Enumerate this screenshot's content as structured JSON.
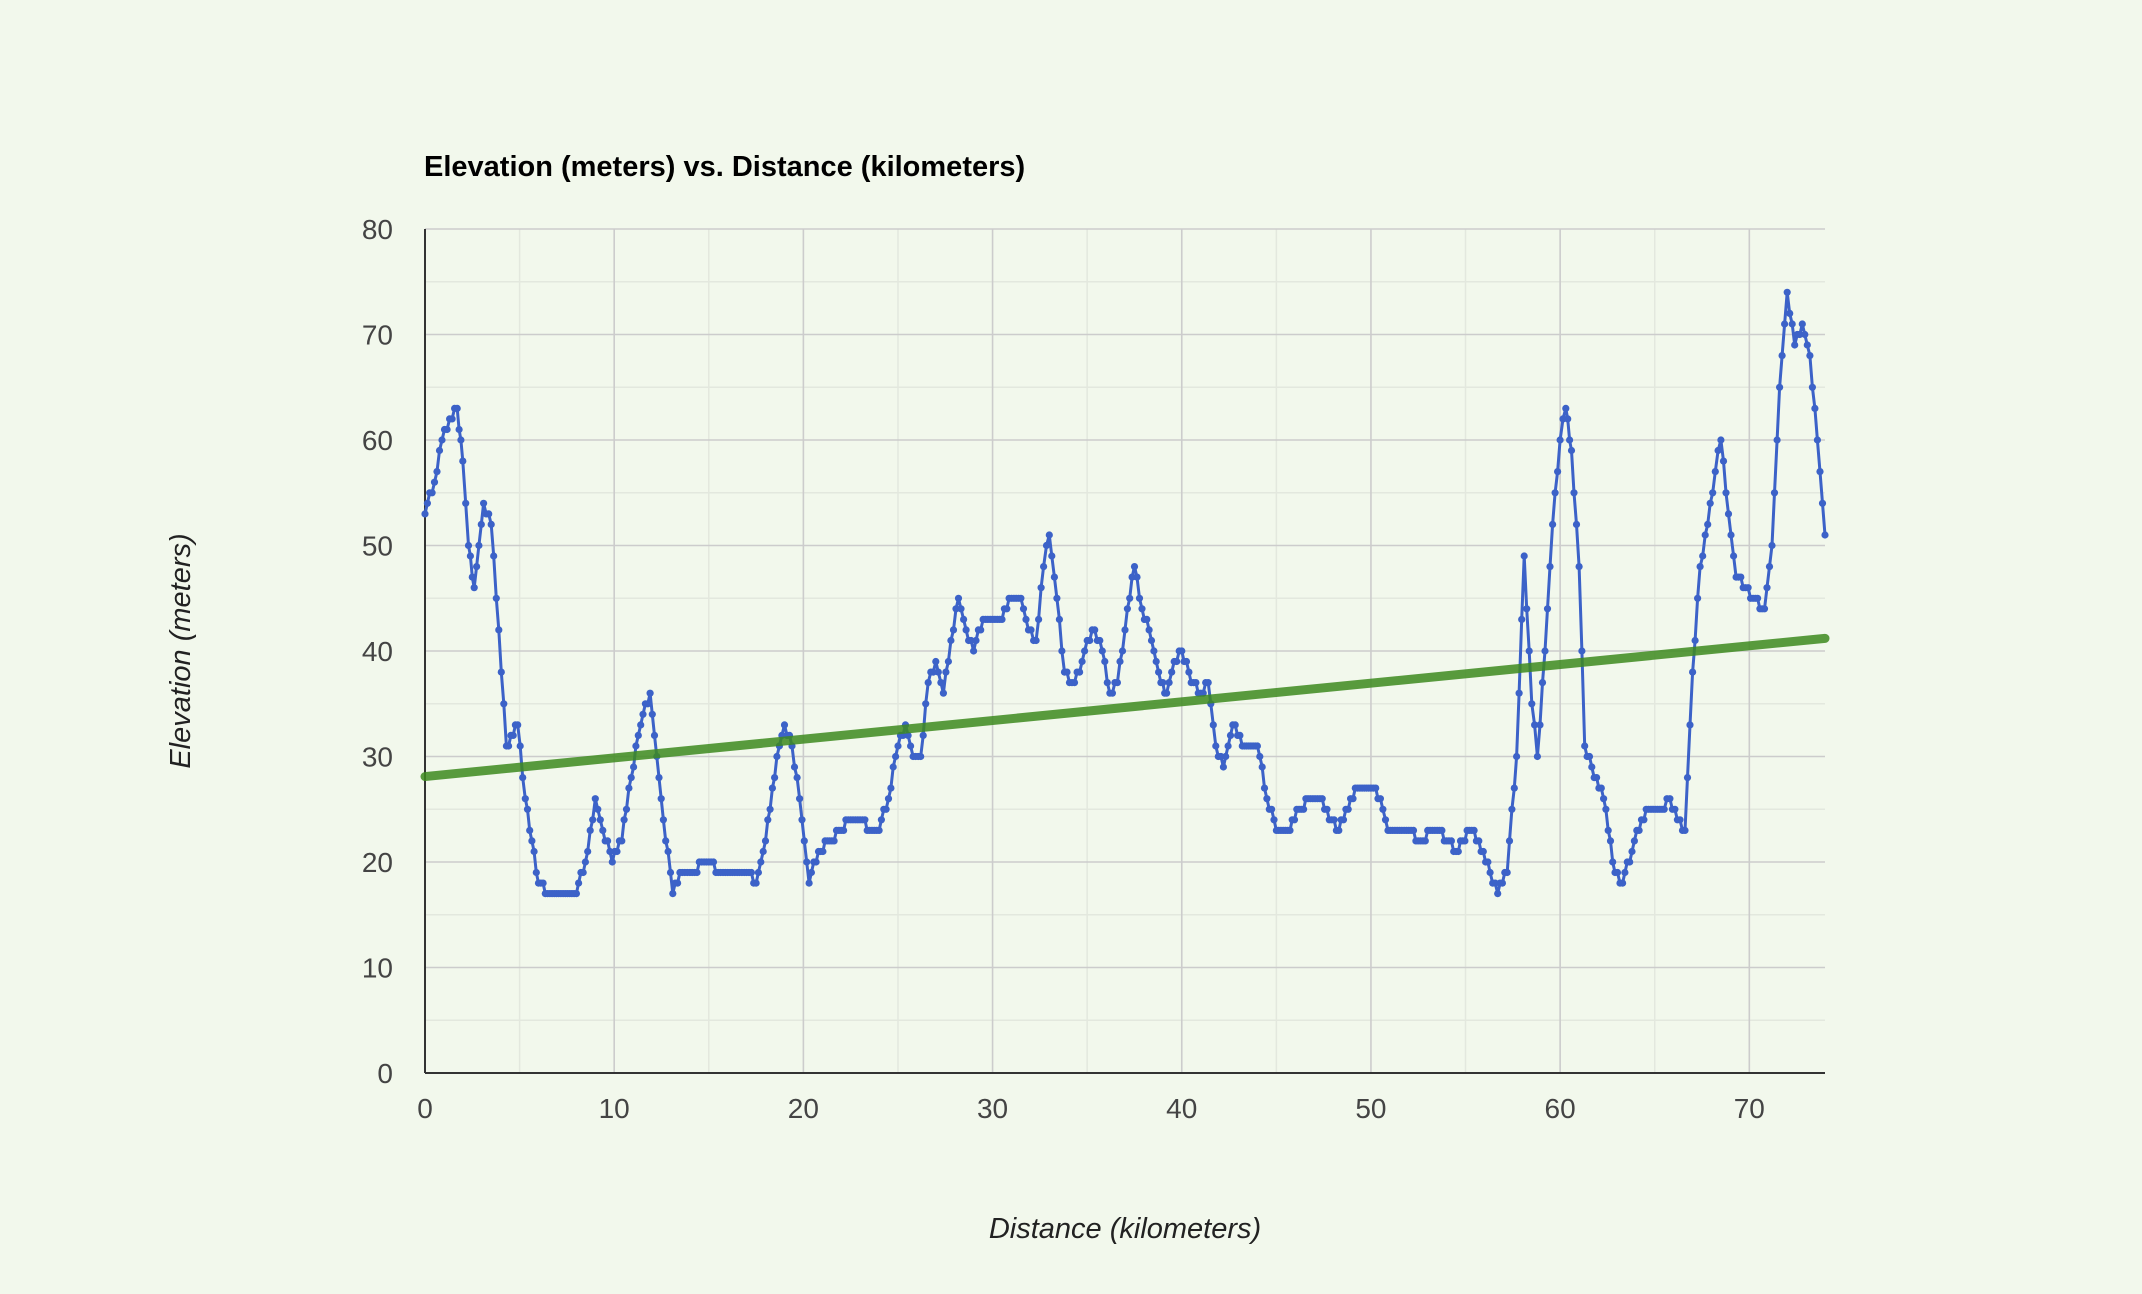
{
  "chart_data": {
    "type": "scatter",
    "title": "Elevation (meters) vs. Distance (kilometers)",
    "xlabel": "Distance (kilometers)",
    "ylabel": "Elevation (meters)",
    "xlim": [
      0,
      74
    ],
    "ylim": [
      0,
      80
    ],
    "x_ticks": [
      0,
      10,
      20,
      30,
      40,
      50,
      60,
      70
    ],
    "y_ticks": [
      0,
      10,
      20,
      30,
      40,
      50,
      60,
      70,
      80
    ],
    "grid": true,
    "legend": "none",
    "colors": {
      "points": "#3c62c8",
      "trendline": "#3d8a1f",
      "background": "#f2f8ec",
      "gridline": "#cccccc"
    },
    "profile_keypoints": [
      [
        0,
        53
      ],
      [
        0.5,
        56
      ],
      [
        0.9,
        60
      ],
      [
        1.3,
        62
      ],
      [
        1.7,
        63
      ],
      [
        2.0,
        58
      ],
      [
        2.3,
        50
      ],
      [
        2.6,
        46
      ],
      [
        3.1,
        54
      ],
      [
        3.5,
        52
      ],
      [
        3.9,
        42
      ],
      [
        4.3,
        31
      ],
      [
        4.9,
        33
      ],
      [
        5.3,
        26
      ],
      [
        6.0,
        18
      ],
      [
        6.6,
        17
      ],
      [
        8.0,
        17
      ],
      [
        8.6,
        21
      ],
      [
        9.0,
        26
      ],
      [
        9.4,
        23
      ],
      [
        9.9,
        20
      ],
      [
        10.4,
        22
      ],
      [
        10.9,
        28
      ],
      [
        11.4,
        33
      ],
      [
        11.9,
        36
      ],
      [
        12.6,
        24
      ],
      [
        13.1,
        17
      ],
      [
        13.6,
        19
      ],
      [
        14.0,
        19
      ],
      [
        15.0,
        20
      ],
      [
        15.5,
        19
      ],
      [
        16.0,
        19
      ],
      [
        17.0,
        19
      ],
      [
        17.5,
        18
      ],
      [
        18.0,
        22
      ],
      [
        18.6,
        30
      ],
      [
        19.0,
        33
      ],
      [
        19.4,
        31
      ],
      [
        19.8,
        26
      ],
      [
        20.3,
        18
      ],
      [
        20.8,
        21
      ],
      [
        21.5,
        22
      ],
      [
        22.5,
        24
      ],
      [
        23.0,
        24
      ],
      [
        23.5,
        23
      ],
      [
        24.0,
        23
      ],
      [
        24.5,
        26
      ],
      [
        25.0,
        31
      ],
      [
        25.4,
        33
      ],
      [
        25.8,
        30
      ],
      [
        26.2,
        30
      ],
      [
        26.6,
        37
      ],
      [
        27.0,
        39
      ],
      [
        27.4,
        36
      ],
      [
        27.8,
        41
      ],
      [
        28.2,
        45
      ],
      [
        28.6,
        42
      ],
      [
        29.0,
        40
      ],
      [
        29.5,
        43
      ],
      [
        30.5,
        43
      ],
      [
        31.0,
        45
      ],
      [
        31.5,
        45
      ],
      [
        31.9,
        42
      ],
      [
        32.3,
        41
      ],
      [
        32.7,
        48
      ],
      [
        33.0,
        51
      ],
      [
        33.4,
        45
      ],
      [
        33.8,
        38
      ],
      [
        34.2,
        37
      ],
      [
        34.6,
        38
      ],
      [
        35.0,
        41
      ],
      [
        35.4,
        42
      ],
      [
        35.8,
        40
      ],
      [
        36.2,
        36
      ],
      [
        36.6,
        37
      ],
      [
        37.0,
        42
      ],
      [
        37.5,
        48
      ],
      [
        37.9,
        44
      ],
      [
        38.4,
        41
      ],
      [
        38.9,
        37
      ],
      [
        39.2,
        36
      ],
      [
        39.6,
        39
      ],
      [
        40.0,
        40
      ],
      [
        40.5,
        37
      ],
      [
        41.0,
        36
      ],
      [
        41.4,
        37
      ],
      [
        41.8,
        31
      ],
      [
        42.2,
        29
      ],
      [
        42.7,
        33
      ],
      [
        43.2,
        31
      ],
      [
        44.0,
        31
      ],
      [
        44.5,
        26
      ],
      [
        45.0,
        23
      ],
      [
        45.6,
        23
      ],
      [
        46.2,
        25
      ],
      [
        46.8,
        26
      ],
      [
        47.3,
        26
      ],
      [
        47.8,
        24
      ],
      [
        48.3,
        23
      ],
      [
        48.8,
        25
      ],
      [
        49.3,
        27
      ],
      [
        50.0,
        27
      ],
      [
        50.5,
        26
      ],
      [
        50.9,
        23
      ],
      [
        52.0,
        23
      ],
      [
        52.5,
        22
      ],
      [
        53.5,
        23
      ],
      [
        54.0,
        22
      ],
      [
        54.5,
        21
      ],
      [
        55.2,
        23
      ],
      [
        55.7,
        22
      ],
      [
        56.3,
        19
      ],
      [
        56.7,
        17
      ],
      [
        57.2,
        19
      ],
      [
        57.7,
        30
      ],
      [
        58.1,
        49
      ],
      [
        58.5,
        35
      ],
      [
        58.8,
        30
      ],
      [
        59.2,
        40
      ],
      [
        59.6,
        52
      ],
      [
        60.0,
        60
      ],
      [
        60.3,
        63
      ],
      [
        60.6,
        59
      ],
      [
        61.0,
        48
      ],
      [
        61.3,
        31
      ],
      [
        61.8,
        28
      ],
      [
        62.3,
        26
      ],
      [
        62.9,
        19
      ],
      [
        63.3,
        18
      ],
      [
        63.8,
        21
      ],
      [
        64.3,
        24
      ],
      [
        64.8,
        25
      ],
      [
        65.5,
        25
      ],
      [
        65.8,
        26
      ],
      [
        66.2,
        24
      ],
      [
        66.6,
        23
      ],
      [
        67.0,
        38
      ],
      [
        67.4,
        48
      ],
      [
        67.8,
        52
      ],
      [
        68.2,
        57
      ],
      [
        68.5,
        60
      ],
      [
        68.9,
        53
      ],
      [
        69.3,
        47
      ],
      [
        69.8,
        46
      ],
      [
        70.2,
        45
      ],
      [
        70.8,
        44
      ],
      [
        71.2,
        50
      ],
      [
        71.6,
        65
      ],
      [
        72.0,
        74
      ],
      [
        72.4,
        69
      ],
      [
        72.8,
        71
      ],
      [
        73.2,
        68
      ],
      [
        73.6,
        60
      ],
      [
        74.0,
        51
      ]
    ],
    "trendline": {
      "x": [
        0,
        74
      ],
      "y": [
        28.1,
        41.2
      ]
    }
  }
}
